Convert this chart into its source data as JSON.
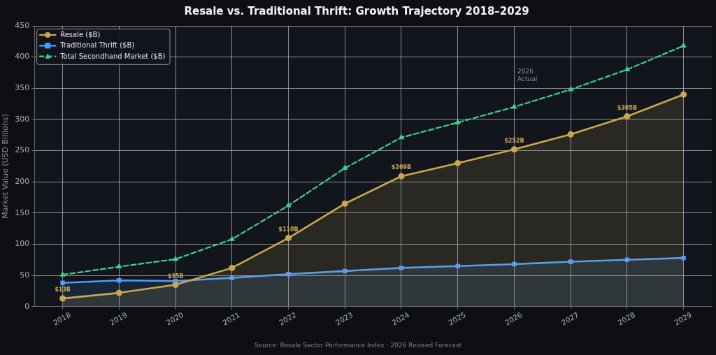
{
  "chart_data": {
    "type": "line",
    "title": "Resale vs. Traditional Thrift: Growth Trajectory 2018–2029",
    "ylabel": "Market Value (USD Billions)",
    "categories": [
      "2018",
      "2019",
      "2020",
      "2021",
      "2022",
      "2023",
      "2024",
      "2025",
      "2026",
      "2027",
      "2028",
      "2029"
    ],
    "series": [
      {
        "name": "Resale ($B)",
        "type": "area",
        "color": "#c9a84c",
        "marker": "circle",
        "values": [
          13,
          22,
          35,
          62,
          110,
          165,
          209,
          230,
          252,
          276,
          305,
          340
        ],
        "value_labels": [
          "$13B",
          null,
          "$35B",
          null,
          "$110B",
          null,
          "$209B",
          null,
          "$252B",
          null,
          "$305B",
          null
        ]
      },
      {
        "name": "Traditional Thrift ($B)",
        "type": "area",
        "color": "#4a9eff",
        "marker": "square",
        "values": [
          38,
          42,
          41,
          46,
          52,
          57,
          62,
          65,
          68,
          72,
          75,
          78
        ]
      },
      {
        "name": "Total Secondhand Market ($B)",
        "type": "line",
        "color": "#3ecf8e",
        "marker": "triangle",
        "line_style": "dashed",
        "values": [
          51,
          64,
          76,
          108,
          162,
          222,
          271,
          295,
          320,
          348,
          380,
          418
        ]
      }
    ],
    "ylim": [
      0,
      450
    ],
    "yticks": [
      0,
      50,
      100,
      150,
      200,
      250,
      300,
      350,
      400,
      450
    ],
    "grid": true,
    "legend": "top left",
    "annotations": [
      "2026\nActual",
      "Source: Resale Sector Performance Index · 2026 Revised Forecast"
    ]
  }
}
